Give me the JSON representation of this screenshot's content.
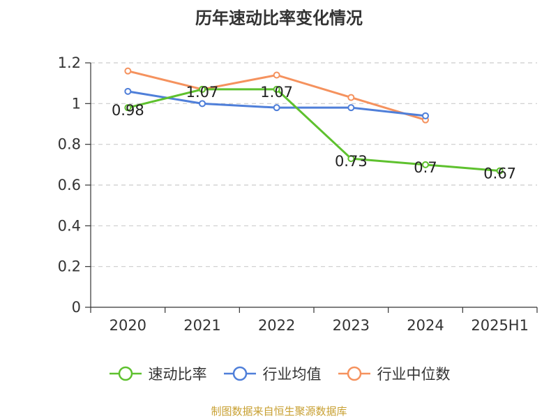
{
  "chart_data": {
    "type": "line",
    "title": "历年速动比率变化情况",
    "categories": [
      "2020",
      "2021",
      "2022",
      "2023",
      "2024",
      "2025H1"
    ],
    "ylim": [
      0,
      1.2
    ],
    "yticks": [
      "0",
      "0.2",
      "0.4",
      "0.6",
      "0.8",
      "1",
      "1.2"
    ],
    "grid": true,
    "legend_position": "bottom",
    "series": [
      {
        "name": "速动比率",
        "color": "#5ec12e",
        "values": [
          0.98,
          1.07,
          1.07,
          0.73,
          0.7,
          0.67
        ],
        "labels": [
          "0.98",
          "1.07",
          "1.07",
          "0.73",
          "0.7",
          "0.67"
        ]
      },
      {
        "name": "行业均值",
        "color": "#4f7fd9",
        "values": [
          1.06,
          1.0,
          0.98,
          0.98,
          0.94,
          null
        ]
      },
      {
        "name": "行业中位数",
        "color": "#f5925e",
        "values": [
          1.16,
          1.07,
          1.14,
          1.03,
          0.92,
          null
        ]
      }
    ]
  },
  "source": "制图数据来自恒生聚源数据库"
}
